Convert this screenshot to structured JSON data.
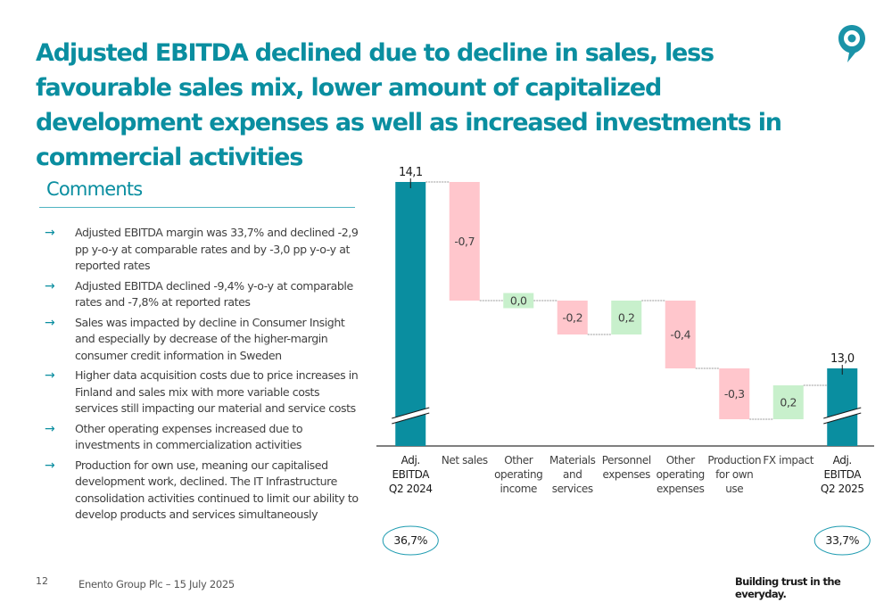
{
  "header": {
    "title": "Adjusted EBITDA declined due to decline in sales, less favourable sales mix, lower amount of capitalized development expenses as well as increased investments in commercial activities",
    "logo_icon": "location-pin-icon"
  },
  "comments": {
    "title": "Comments",
    "bullet_icon": "arrow-right-icon",
    "items": [
      "Adjusted EBITDA margin was 33,7% and declined -2,9 pp y-o-y at comparable rates and by -3,0 pp y-o-y at reported rates",
      "Adjusted EBITDA declined -9,4% y-o-y at comparable rates and -7,8% at reported rates",
      "Sales was impacted by decline in Consumer Insight and especially by decrease of the higher-margin consumer credit information in Sweden",
      "Higher data acquisition costs due to price increases in Finland and sales mix with more variable costs services still impacting our material and service costs",
      "Other operating expenses increased due to investments in commercialization activities",
      "Production for own use, meaning our capitalised development work, declined. The IT Infrastructure consolidation activities continued to limit our ability to develop products and services simultaneously"
    ]
  },
  "footer": {
    "page_number": "12",
    "company_date": "Enento Group Plc – 15 July 2025",
    "tagline": "Building trust in the everyday."
  },
  "colors": {
    "brand": "#0a8ea0",
    "total_bar": "#0a8ea0",
    "decrease": "#ffc6cc",
    "increase": "#c8f0cc",
    "connector": "#999999",
    "margin_ellipse": "#1d9bb0"
  },
  "chart_data": {
    "type": "waterfall",
    "title": "",
    "xlabel": "",
    "ylabel": "",
    "axis_break": true,
    "categories": [
      [
        "Adj.",
        "EBITDA",
        "Q2 2024"
      ],
      [
        "Net sales"
      ],
      [
        "Other",
        "operating",
        "income"
      ],
      [
        "Materials",
        "and",
        "services"
      ],
      [
        "Personnel",
        "expenses"
      ],
      [
        "Other",
        "operating",
        "expenses"
      ],
      [
        "Production",
        "for own",
        "use"
      ],
      [
        "FX impact"
      ],
      [
        "Adj.",
        "EBITDA",
        "Q2 2025"
      ]
    ],
    "kinds": [
      "total",
      "delta",
      "delta",
      "delta",
      "delta",
      "delta",
      "delta",
      "delta",
      "total"
    ],
    "values": [
      14.1,
      -0.7,
      0.0,
      -0.2,
      0.2,
      -0.4,
      -0.3,
      0.2,
      13.0
    ],
    "labels": [
      "14,1",
      "-0,7",
      "0,0",
      "-0,2",
      "0,2",
      "-0,4",
      "-0,3",
      "0,2",
      "13,0"
    ],
    "margins": [
      {
        "category_index": 0,
        "label": "36,7%"
      },
      {
        "category_index": 8,
        "label": "33,7%"
      }
    ]
  }
}
